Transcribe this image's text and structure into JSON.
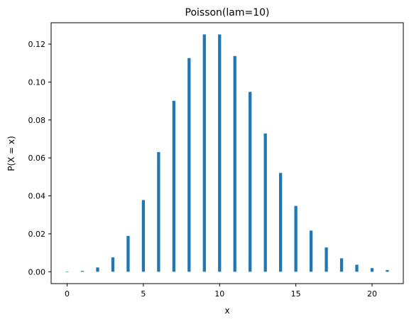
{
  "chart_data": {
    "type": "bar",
    "title": "Poisson(lam=10)",
    "xlabel": "x",
    "ylabel": "P(X = x)",
    "xlim": [
      -1.05,
      22.05
    ],
    "ylim": [
      -0.00625,
      0.13125
    ],
    "xticks": [
      0,
      5,
      10,
      15,
      20
    ],
    "yticks": [
      0.0,
      0.02,
      0.04,
      0.06,
      0.08,
      0.1,
      0.12
    ],
    "ytick_labels": [
      "0.00",
      "0.02",
      "0.04",
      "0.06",
      "0.08",
      "0.10",
      "0.12"
    ],
    "x": [
      0,
      1,
      2,
      3,
      4,
      5,
      6,
      7,
      8,
      9,
      10,
      11,
      12,
      13,
      14,
      15,
      16,
      17,
      18,
      19,
      20,
      21
    ],
    "values": [
      4.54e-05,
      0.000454,
      0.00227,
      0.00757,
      0.0189,
      0.0378,
      0.0631,
      0.0901,
      0.1126,
      0.1251,
      0.1251,
      0.1137,
      0.0948,
      0.0729,
      0.0521,
      0.0347,
      0.0217,
      0.0128,
      0.0071,
      0.0037,
      0.0019,
      0.0009
    ],
    "grid": false,
    "bar_color": "#1f77b4"
  }
}
